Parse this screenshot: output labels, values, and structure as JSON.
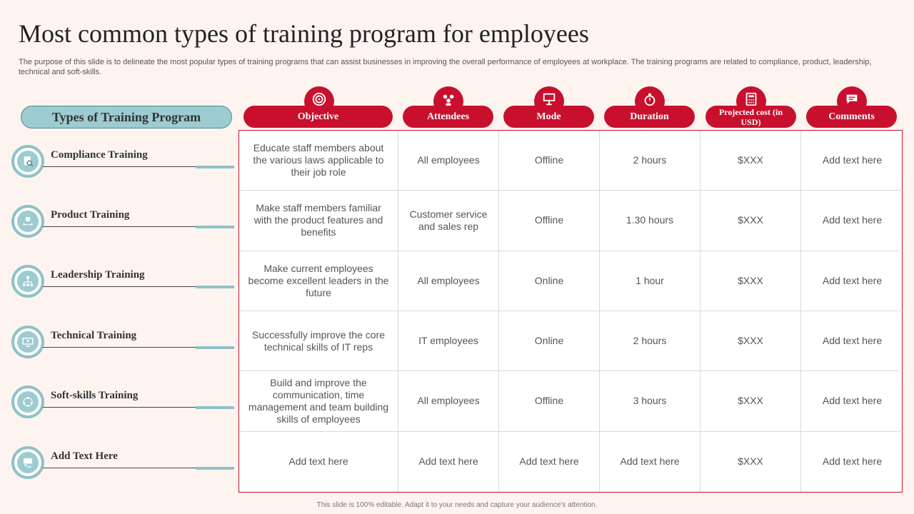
{
  "title": "Most common types of training program for employees",
  "subtitle": "The purpose of this slide is to delineate the most popular types of training programs that can assist businesses in improving the overall performance of employees at workplace. The training programs are related to compliance, product, leadership, technical and soft-skills.",
  "left_header": "Types of Training Program",
  "columns": [
    {
      "label": "Objective",
      "icon": "target-icon"
    },
    {
      "label": "Attendees",
      "icon": "people-icon"
    },
    {
      "label": "Mode",
      "icon": "presentation-icon"
    },
    {
      "label": "Duration",
      "icon": "stopwatch-icon"
    },
    {
      "label": "Projected cost (in USD)",
      "icon": "calculator-icon"
    },
    {
      "label": "Comments",
      "icon": "chat-icon"
    }
  ],
  "rows": [
    {
      "name": "Compliance  Training",
      "icon": "document-search-icon",
      "cells": [
        "Educate staff members about the various laws applicable to their job role",
        "All employees",
        "Offline",
        "2 hours",
        "$XXX",
        "Add text here"
      ]
    },
    {
      "name": "Product  Training",
      "icon": "product-hand-icon",
      "cells": [
        "Make staff members familiar with the product features and benefits",
        "Customer service and sales rep",
        "Offline",
        "1.30 hours",
        "$XXX",
        "Add text here"
      ]
    },
    {
      "name": "Leadership  Training",
      "icon": "hierarchy-icon",
      "cells": [
        "Make current employees become excellent leaders in the future",
        "All employees",
        "Online",
        "1 hour",
        "$XXX",
        "Add text here"
      ]
    },
    {
      "name": "Technical  Training",
      "icon": "technical-icon",
      "cells": [
        "Successfully improve the core technical skills of IT reps",
        "IT employees",
        "Online",
        "2 hours",
        "$XXX",
        "Add text here"
      ]
    },
    {
      "name": "Soft-skills  Training",
      "icon": "team-icon",
      "cells": [
        "Build and improve the communication, time management and team building skills of employees",
        "All employees",
        "Offline",
        "3 hours",
        "$XXX",
        "Add text here"
      ]
    },
    {
      "name": "Add Text Here",
      "icon": "presentation-person-icon",
      "cells": [
        "Add text here",
        "Add text here",
        "Add text here",
        "Add text here",
        "$XXX",
        "Add text here"
      ]
    }
  ],
  "footer": "This slide is 100% editable. Adapt it to your needs and capture your audience's attention.",
  "colors": {
    "accent": "#c8102e",
    "teal": "#9ccbd0",
    "teal_border": "#8fc1c7",
    "background": "#fdf4f0"
  }
}
